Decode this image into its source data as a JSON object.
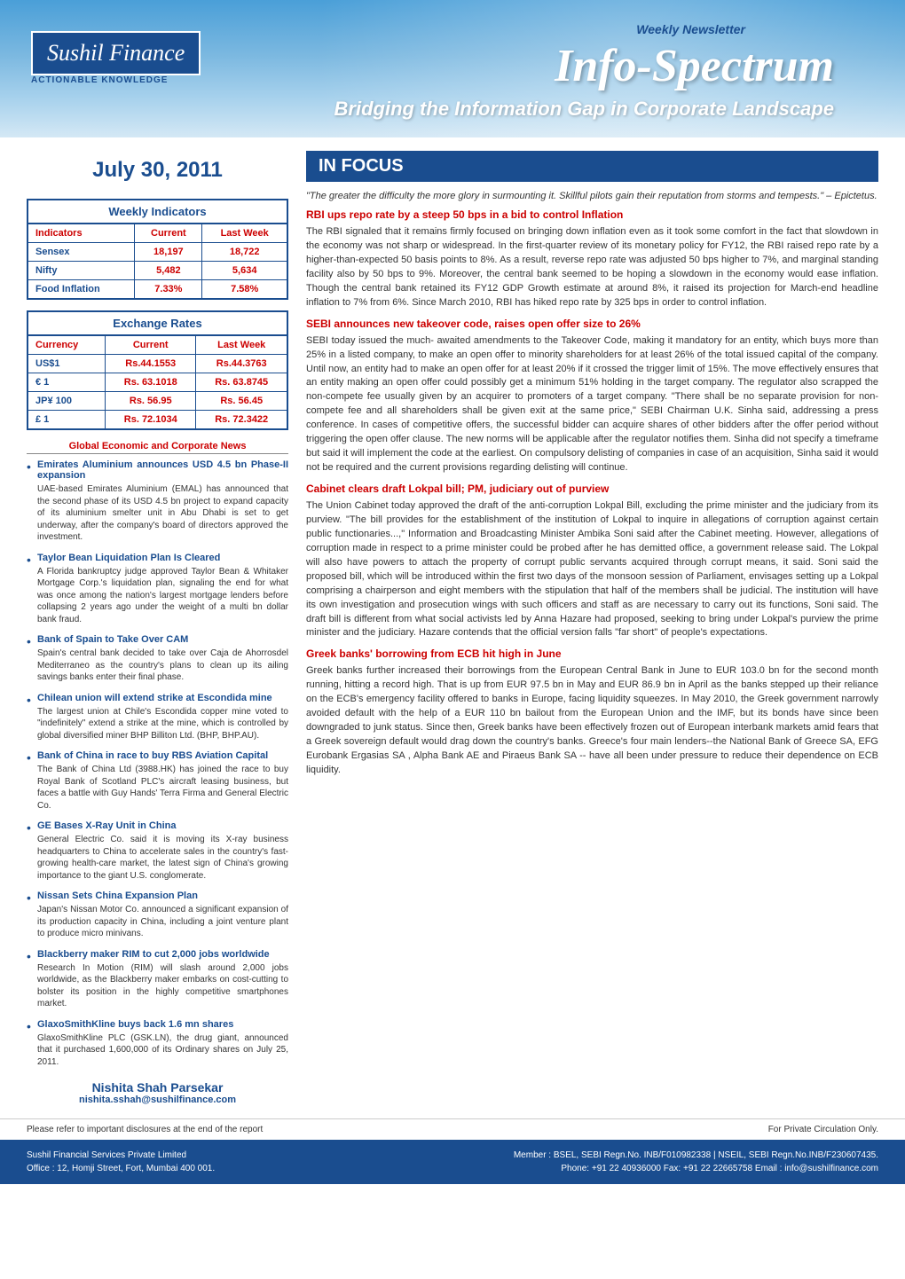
{
  "banner": {
    "logo_text": "Sushil Finance",
    "logo_tagline": "ACTIONABLE KNOWLEDGE",
    "newsletter_label": "Weekly Newsletter",
    "main_title": "Info-Spectrum",
    "sub_title": "Bridging the Information Gap in Corporate Landscape"
  },
  "date": "July 30, 2011",
  "focus_label": "IN FOCUS",
  "weekly_indicators": {
    "title": "Weekly Indicators",
    "columns": [
      "Indicators",
      "Current",
      "Last Week"
    ],
    "rows": [
      [
        "Sensex",
        "18,197",
        "18,722"
      ],
      [
        "Nifty",
        "5,482",
        "5,634"
      ],
      [
        "Food Inflation",
        "7.33%",
        "7.58%"
      ]
    ]
  },
  "exchange_rates": {
    "title": "Exchange Rates",
    "columns": [
      "Currency",
      "Current",
      "Last Week"
    ],
    "rows": [
      [
        "US$1",
        "Rs.44.1553",
        "Rs.44.3763"
      ],
      [
        "€ 1",
        "Rs. 63.1018",
        "Rs. 63.8745"
      ],
      [
        "JP¥ 100",
        "Rs. 56.95",
        "Rs. 56.45"
      ],
      [
        "£ 1",
        "Rs. 72.1034",
        "Rs. 72.3422"
      ]
    ]
  },
  "news_section_title": "Global Economic and Corporate News",
  "news_items": [
    {
      "title": "Emirates Aluminium announces USD 4.5 bn Phase-II expansion",
      "body": "UAE-based Emirates Aluminium (EMAL) has announced that the second phase of its USD 4.5 bn project to expand capacity of its aluminium smelter unit in Abu Dhabi is set to get underway, after the company's board of directors approved the investment."
    },
    {
      "title": "Taylor Bean Liquidation Plan Is Cleared",
      "body": "A Florida bankruptcy judge approved Taylor Bean & Whitaker Mortgage Corp.'s liquidation plan, signaling the end for what was once among the nation's largest mortgage lenders before collapsing 2 years ago under the weight of a multi bn dollar bank fraud."
    },
    {
      "title": "Bank of Spain to Take Over CAM",
      "body": "Spain's central bank decided to take over Caja de Ahorrosdel Mediterraneo as the country's plans to clean up its ailing savings banks enter their final phase."
    },
    {
      "title": "Chilean union will extend strike at Escondida mine",
      "body": "The largest union at Chile's Escondida copper mine voted to \"indefinitely\" extend a strike at the mine, which is controlled by global diversified miner BHP Billiton Ltd. (BHP, BHP.AU)."
    },
    {
      "title": "Bank of China in race to buy RBS Aviation Capital",
      "body": "The Bank of China Ltd (3988.HK) has joined the race to buy Royal Bank of Scotland PLC's aircraft leasing business, but faces a battle with Guy Hands' Terra Firma and General Electric Co."
    },
    {
      "title": "GE Bases X-Ray Unit in China",
      "body": "General Electric Co. said it is moving its X-ray business headquarters to China to accelerate sales in the country's fast-growing health-care market, the latest sign of China's growing importance to the giant U.S. conglomerate."
    },
    {
      "title": "Nissan Sets China Expansion Plan",
      "body": "Japan's Nissan Motor Co. announced a significant expansion of its production capacity in China, including a joint venture plant to produce micro minivans."
    },
    {
      "title": "Blackberry maker RIM to cut 2,000 jobs worldwide",
      "body": "Research In Motion (RIM) will slash around 2,000 jobs worldwide, as the Blackberry maker embarks on cost-cutting to bolster its position in the highly competitive smartphones market."
    },
    {
      "title": "GlaxoSmithKline buys back 1.6 mn shares",
      "body": "GlaxoSmithKline PLC (GSK.LN), the drug giant, announced that it purchased 1,600,000 of its Ordinary shares on July 25, 2011."
    }
  ],
  "author": {
    "name": "Nishita Shah Parsekar",
    "email": "nishita.sshah@sushilfinance.com"
  },
  "quote": "\"The greater the difficulty the more glory in surmounting it. Skillful pilots gain their reputation from storms and tempests.\" – Epictetus.",
  "articles": [
    {
      "title": "RBI ups repo rate by a steep 50 bps in a bid to control Inflation",
      "body": "The RBI signaled that it remains firmly focused on bringing down inflation even as it took some comfort in the fact that slowdown in the economy was not sharp or widespread. In the first-quarter review of its monetary policy for FY12, the RBI raised repo rate by a higher-than-expected 50 basis points to 8%. As a result, reverse repo rate was adjusted 50 bps higher to 7%, and marginal standing facility also by 50 bps to 9%. Moreover, the central bank seemed to be hoping a slowdown in the economy would ease inflation. Though the central bank retained its FY12 GDP Growth estimate at around 8%, it raised its projection for March-end headline inflation to 7% from 6%. Since March 2010, RBI has hiked repo rate by 325 bps in order to control inflation."
    },
    {
      "title": "SEBI announces new takeover code, raises open offer size to 26%",
      "body": "SEBI today issued the much- awaited amendments to the Takeover Code, making it mandatory for an entity, which buys more than 25% in a listed company, to make an open offer to minority shareholders for at least 26% of the total issued capital of the company. Until now, an entity had to make an open offer for at least 20% if it crossed the trigger limit of 15%. The move effectively ensures that an entity making an open offer could possibly get a minimum 51% holding in the target company. The regulator also scrapped the non-compete fee usually given by an acquirer to promoters of a target company. \"There shall be no separate provision for non-compete fee and all shareholders shall be given exit at the same price,\" SEBI Chairman U.K. Sinha said, addressing a press conference. In cases of competitive offers, the successful bidder can acquire shares of other bidders after the offer period without triggering the open offer clause. The new norms will be applicable after the regulator notifies them. Sinha did not specify a timeframe but said it will implement the code at the earliest. On compulsory delisting of companies in case of an acquisition, Sinha said it would not be required and the current provisions regarding delisting will continue."
    },
    {
      "title": "Cabinet clears draft Lokpal bill; PM, judiciary out of purview",
      "body": "The Union Cabinet today approved the draft of the anti-corruption Lokpal Bill, excluding the prime minister and the judiciary from its purview. \"The bill provides for the establishment of the institution of Lokpal to inquire in allegations of corruption against certain public functionaries...,\" Information and Broadcasting Minister Ambika Soni said after the Cabinet meeting. However, allegations of corruption made in respect to a prime minister could be probed after he has demitted office, a government release said. The Lokpal will also have powers to attach the property of corrupt public servants acquired through corrupt means, it said. Soni said the proposed bill, which will be introduced within the first two days of the monsoon session of Parliament, envisages setting up a Lokpal comprising a chairperson and eight members with the stipulation that half of the members shall be judicial. The institution will have its own investigation and prosecution wings with such officers and staff as are necessary to carry out its functions, Soni said. The draft bill is different from what social activists led by Anna Hazare had proposed, seeking to bring under Lokpal's purview the prime minister and the judiciary. Hazare contends that the official version falls \"far short\" of people's expectations."
    },
    {
      "title": "Greek banks' borrowing from ECB hit high in June",
      "body": "Greek banks further increased their borrowings from the European Central Bank in June to EUR 103.0 bn for the second month running, hitting a record high. That is up from EUR 97.5 bn in May and EUR 86.9 bn in April as the banks stepped up their reliance on the ECB's emergency facility offered to banks in Europe, facing liquidity squeezes. In May 2010, the Greek government narrowly avoided default with the help of a EUR 110 bn bailout from the European Union and the IMF, but its bonds have since been downgraded to junk status. Since then, Greek banks have been effectively frozen out of European interbank markets amid fears that a Greek sovereign default would drag down the country's banks. Greece's four main lenders--the National Bank of Greece SA, EFG Eurobank Ergasias SA , Alpha Bank AE and Piraeus Bank SA -- have all been under pressure to reduce their dependence on ECB liquidity."
    }
  ],
  "disclaimer": {
    "left": "Please refer to important disclosures at the end of the report",
    "right": "For Private Circulation Only."
  },
  "footer": {
    "company": "Sushil Financial Services Private Limited",
    "address": "Office : 12, Homji Street, Fort, Mumbai 400 001.",
    "member": "Member : BSEL, SEBI Regn.No. INB/F010982338 | NSEIL, SEBI Regn.No.INB/F230607435.",
    "contact": "Phone: +91 22 40936000 Fax: +91 22 22665758 Email : info@sushilfinance.com"
  },
  "colors": {
    "primary_blue": "#1a4d8f",
    "accent_red": "#c00000",
    "text": "#333333"
  }
}
